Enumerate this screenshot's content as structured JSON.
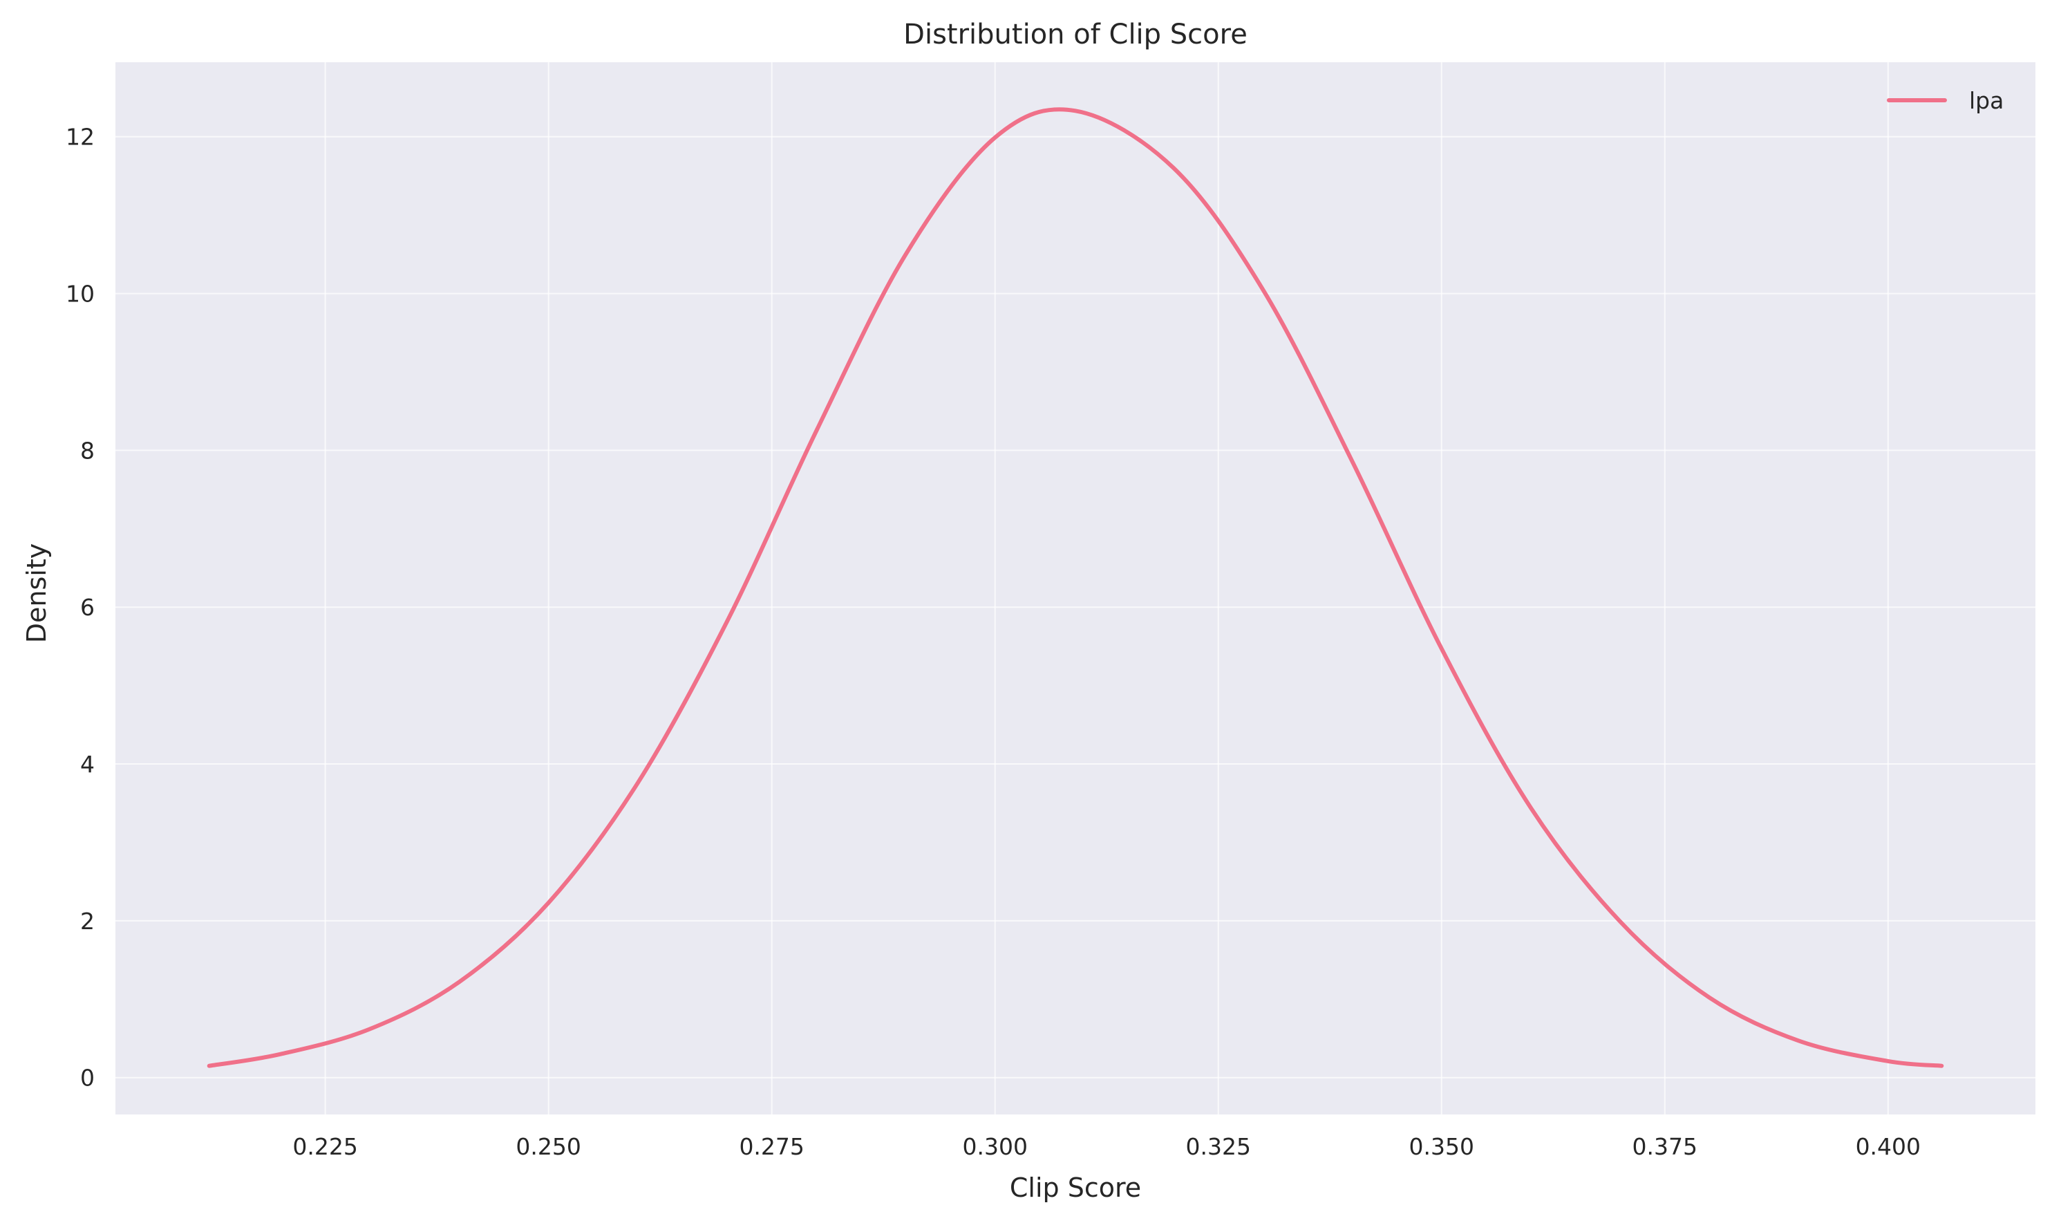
{
  "chart_data": {
    "type": "line",
    "title": "Distribution of Clip Score",
    "xlabel": "Clip Score",
    "ylabel": "Density",
    "xlim": [
      0.2015,
      0.4165
    ],
    "ylim": [
      -0.47,
      12.95
    ],
    "xticks": [
      0.225,
      0.25,
      0.275,
      0.3,
      0.325,
      0.35,
      0.375,
      0.4
    ],
    "xtick_labels": [
      "0.225",
      "0.250",
      "0.275",
      "0.300",
      "0.325",
      "0.350",
      "0.375",
      "0.400"
    ],
    "yticks": [
      0,
      2,
      4,
      6,
      8,
      10,
      12
    ],
    "ytick_labels": [
      "0",
      "2",
      "4",
      "6",
      "8",
      "10",
      "12"
    ],
    "grid": true,
    "legend_position": "top-right",
    "colors": {
      "background": "#eaeaf2",
      "grid": "#ffffff",
      "line": "#f07089",
      "text": "#262626"
    },
    "series": [
      {
        "name": "lpa",
        "x": [
          0.212,
          0.22,
          0.23,
          0.24,
          0.25,
          0.26,
          0.27,
          0.28,
          0.29,
          0.3,
          0.309,
          0.32,
          0.33,
          0.34,
          0.35,
          0.36,
          0.37,
          0.38,
          0.39,
          0.4,
          0.406
        ],
        "y": [
          0.15,
          0.3,
          0.62,
          1.22,
          2.23,
          3.76,
          5.82,
          8.25,
          10.5,
          11.99,
          12.33,
          11.6,
          10.05,
          7.86,
          5.47,
          3.44,
          1.99,
          1.02,
          0.47,
          0.21,
          0.15
        ]
      }
    ]
  }
}
